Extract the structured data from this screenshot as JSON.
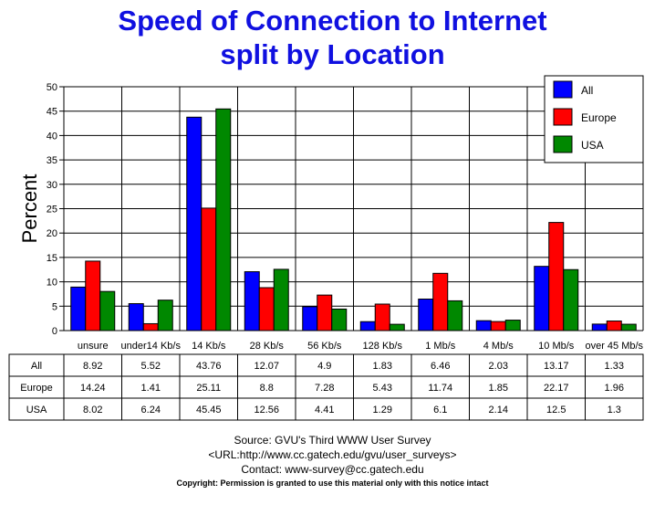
{
  "title_line1": "Speed of Connection to Internet",
  "title_line2": "split by Location",
  "chart_data": {
    "type": "bar",
    "ylabel": "Percent",
    "ylim": [
      0,
      50
    ],
    "yticks": [
      0,
      5,
      10,
      15,
      20,
      25,
      30,
      35,
      40,
      45,
      50
    ],
    "grid": true,
    "legend_position": "top-right",
    "categories": [
      "unsure",
      "under14 Kb/s",
      "14 Kb/s",
      "28 Kb/s",
      "56 Kb/s",
      "128 Kb/s",
      "1 Mb/s",
      "4 Mb/s",
      "10 Mb/s",
      "over 45 Mb/s"
    ],
    "series": [
      {
        "name": "All",
        "color": "#0000ff",
        "values": [
          8.92,
          5.52,
          43.76,
          12.07,
          4.9,
          1.83,
          6.46,
          2.03,
          13.17,
          1.33
        ]
      },
      {
        "name": "Europe",
        "color": "#ff0000",
        "values": [
          14.24,
          1.41,
          25.11,
          8.8,
          7.28,
          5.43,
          11.74,
          1.85,
          22.17,
          1.96
        ]
      },
      {
        "name": "USA",
        "color": "#008800",
        "values": [
          8.02,
          6.24,
          45.45,
          12.56,
          4.41,
          1.29,
          6.1,
          2.14,
          12.5,
          1.3
        ]
      }
    ]
  },
  "footer": {
    "source": "Source: GVU's Third WWW User Survey",
    "url": "<URL:http://www.cc.gatech.edu/gvu/user_surveys>",
    "contact": "Contact: www-survey@cc.gatech.edu",
    "copyright": "Copyright: Permission is granted to use this material only with this notice intact"
  }
}
